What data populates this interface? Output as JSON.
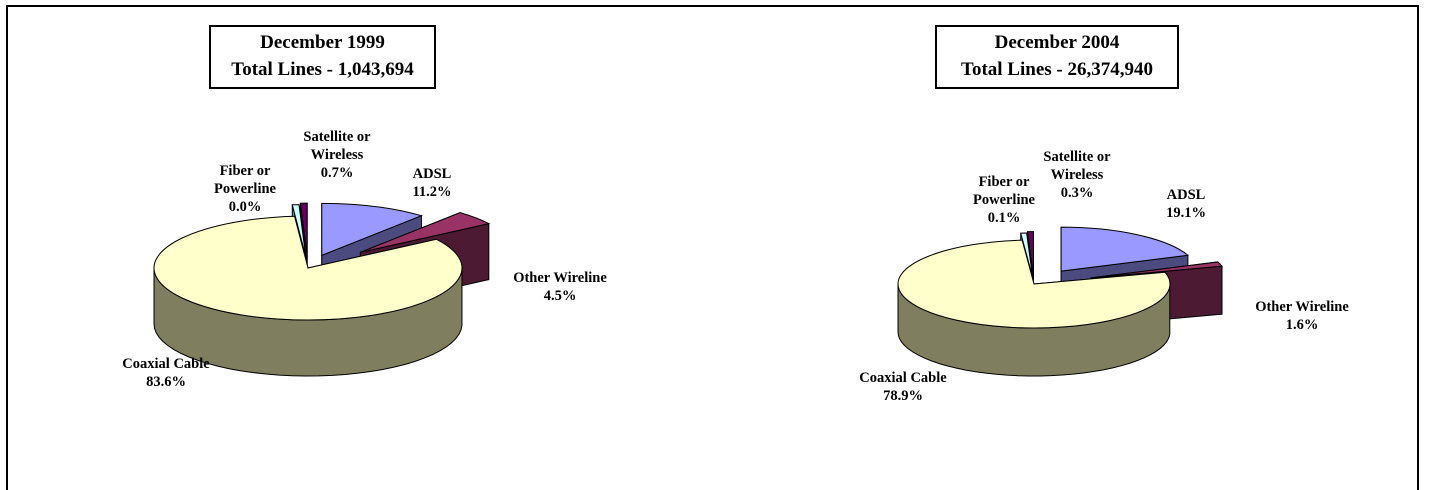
{
  "colors": {
    "coaxial_top": "#ffffcc",
    "coaxial_side": "#7f7f5f",
    "adsl_top": "#9999ff",
    "adsl_side": "#4b4b80",
    "other_top": "#993366",
    "other_side": "#4d1a33",
    "satellite_top": "#660066",
    "satellite_side": "#330033",
    "fiber_top": "#ccffff",
    "fiber_side": "#669999"
  },
  "chart_data": [
    {
      "type": "pie",
      "title": "December 1999",
      "subtitle": "Total Lines - 1,043,694",
      "slices": [
        {
          "key": "adsl",
          "label_lines": [
            "ADSL",
            "11.2%"
          ],
          "value": 11.2
        },
        {
          "key": "other",
          "label_lines": [
            "Other Wireline",
            "4.5%"
          ],
          "value": 4.5
        },
        {
          "key": "coaxial",
          "label_lines": [
            "Coaxial Cable",
            "83.6%"
          ],
          "value": 83.6
        },
        {
          "key": "fiber",
          "label_lines": [
            "Fiber or",
            "Powerline",
            "0.0%"
          ],
          "value": 0.0
        },
        {
          "key": "satellite",
          "label_lines": [
            "Satellite or",
            "Wireless",
            "0.7%"
          ],
          "value": 0.7
        }
      ]
    },
    {
      "type": "pie",
      "title": "December 2004",
      "subtitle": "Total Lines - 26,374,940",
      "slices": [
        {
          "key": "adsl",
          "label_lines": [
            "ADSL",
            "19.1%"
          ],
          "value": 19.1
        },
        {
          "key": "other",
          "label_lines": [
            "Other Wireline",
            "1.6%"
          ],
          "value": 1.6
        },
        {
          "key": "coaxial",
          "label_lines": [
            "Coaxial Cable",
            "78.9%"
          ],
          "value": 78.9
        },
        {
          "key": "fiber",
          "label_lines": [
            "Fiber or",
            "Powerline",
            "0.1%"
          ],
          "value": 0.1
        },
        {
          "key": "satellite",
          "label_lines": [
            "Satellite or",
            "Wireless",
            "0.3%"
          ],
          "value": 0.3
        }
      ]
    }
  ]
}
